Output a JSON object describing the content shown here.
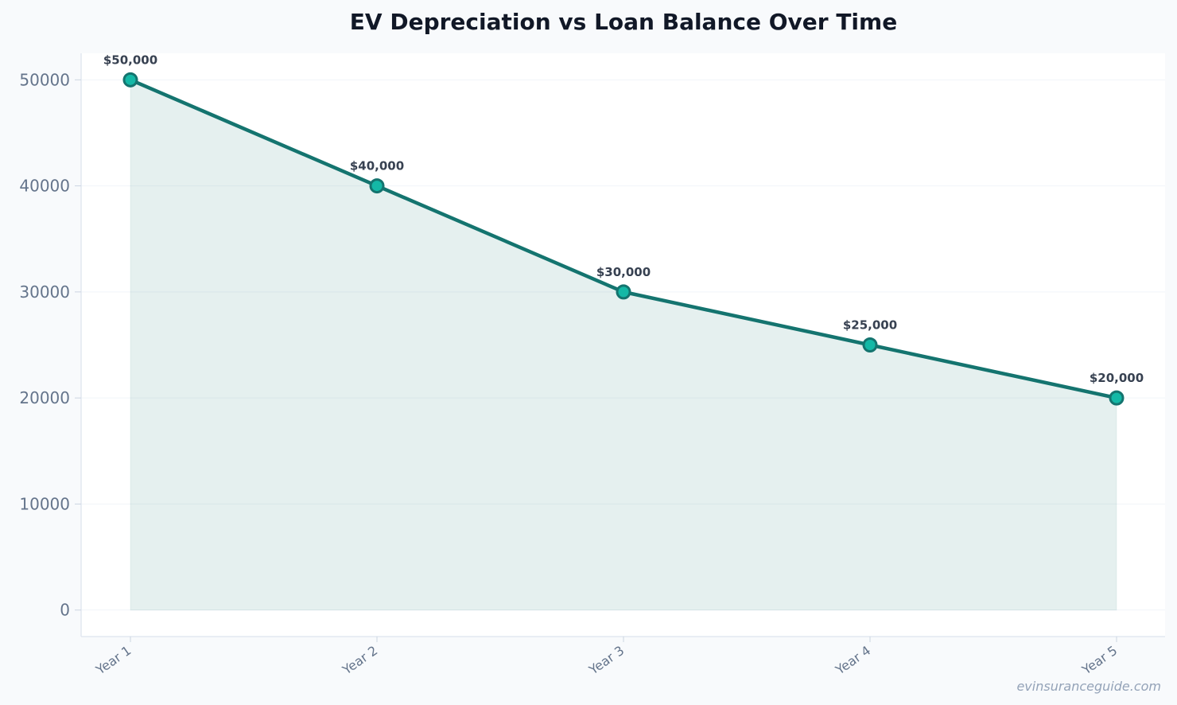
{
  "chart_data": {
    "type": "area",
    "title": "EV Depreciation vs Loan Balance Over Time",
    "xlabel": "",
    "ylabel": "",
    "categories": [
      "Year 1",
      "Year 2",
      "Year 3",
      "Year 4",
      "Year 5"
    ],
    "series": [
      {
        "values": [
          50000,
          40000,
          30000,
          25000,
          20000
        ],
        "data_labels": [
          "$50,000",
          "$40,000",
          "$30,000",
          "$25,000",
          "$20,000"
        ]
      }
    ],
    "yticks": [
      "0",
      "10000",
      "20000",
      "30000",
      "40000",
      "50000"
    ],
    "ylim": [
      -2500,
      52500
    ],
    "grid": true,
    "legend": "none",
    "colors": {
      "line": "#14746f",
      "marker_fill": "#14b8a6",
      "area_fill": "#14746f"
    }
  },
  "watermark": "evinsuranceguide.com"
}
